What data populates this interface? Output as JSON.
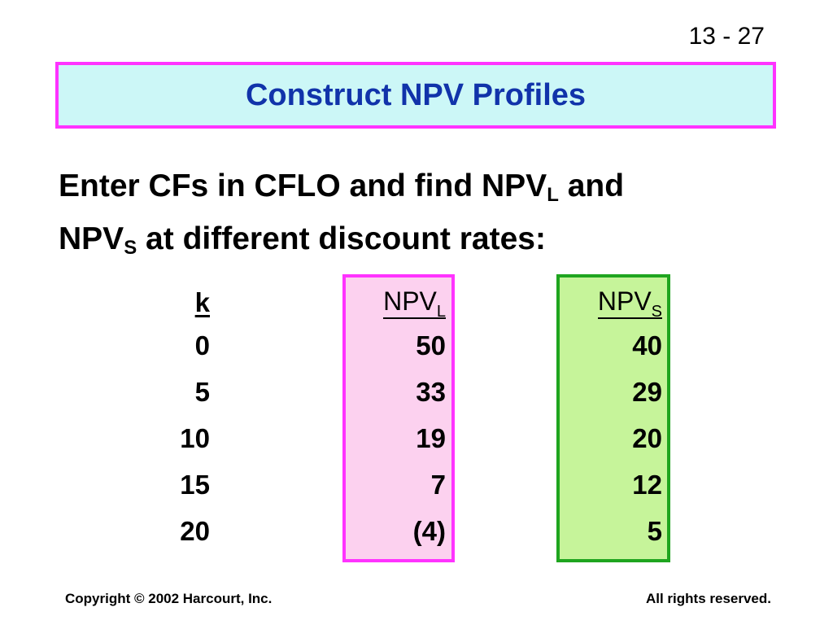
{
  "slide": {
    "page_number": "13 - 27",
    "title": "Construct NPV Profiles",
    "intro": {
      "part1": "Enter CFs in CFLO and find NPV",
      "sub1": "L",
      "part2": " and",
      "part3": "NPV",
      "sub2": "S",
      "part4": " at different discount rates:"
    }
  },
  "table": {
    "k_header": "k",
    "npvl_header": "NPV",
    "npvl_sub": "L",
    "npvs_header": "NPV",
    "npvs_sub": "S",
    "k_values": [
      "0",
      "5",
      "10",
      "15",
      "20"
    ],
    "npvl_values": [
      "50",
      "33",
      "19",
      "7",
      "(4)"
    ],
    "npvs_values": [
      "40",
      "29",
      "20",
      "12",
      "5"
    ]
  },
  "footer": {
    "copyright": "Copyright © 2002 Harcourt, Inc.",
    "rights": "All rights reserved."
  },
  "colors": {
    "title_bg": "#ccf7f7",
    "title_border": "#ff33ff",
    "title_text": "#1133aa",
    "npvl_bg": "#fcd1ef",
    "npvl_border": "#ff33ff",
    "npvs_bg": "#c6f49a",
    "npvs_border": "#1fa51f"
  }
}
